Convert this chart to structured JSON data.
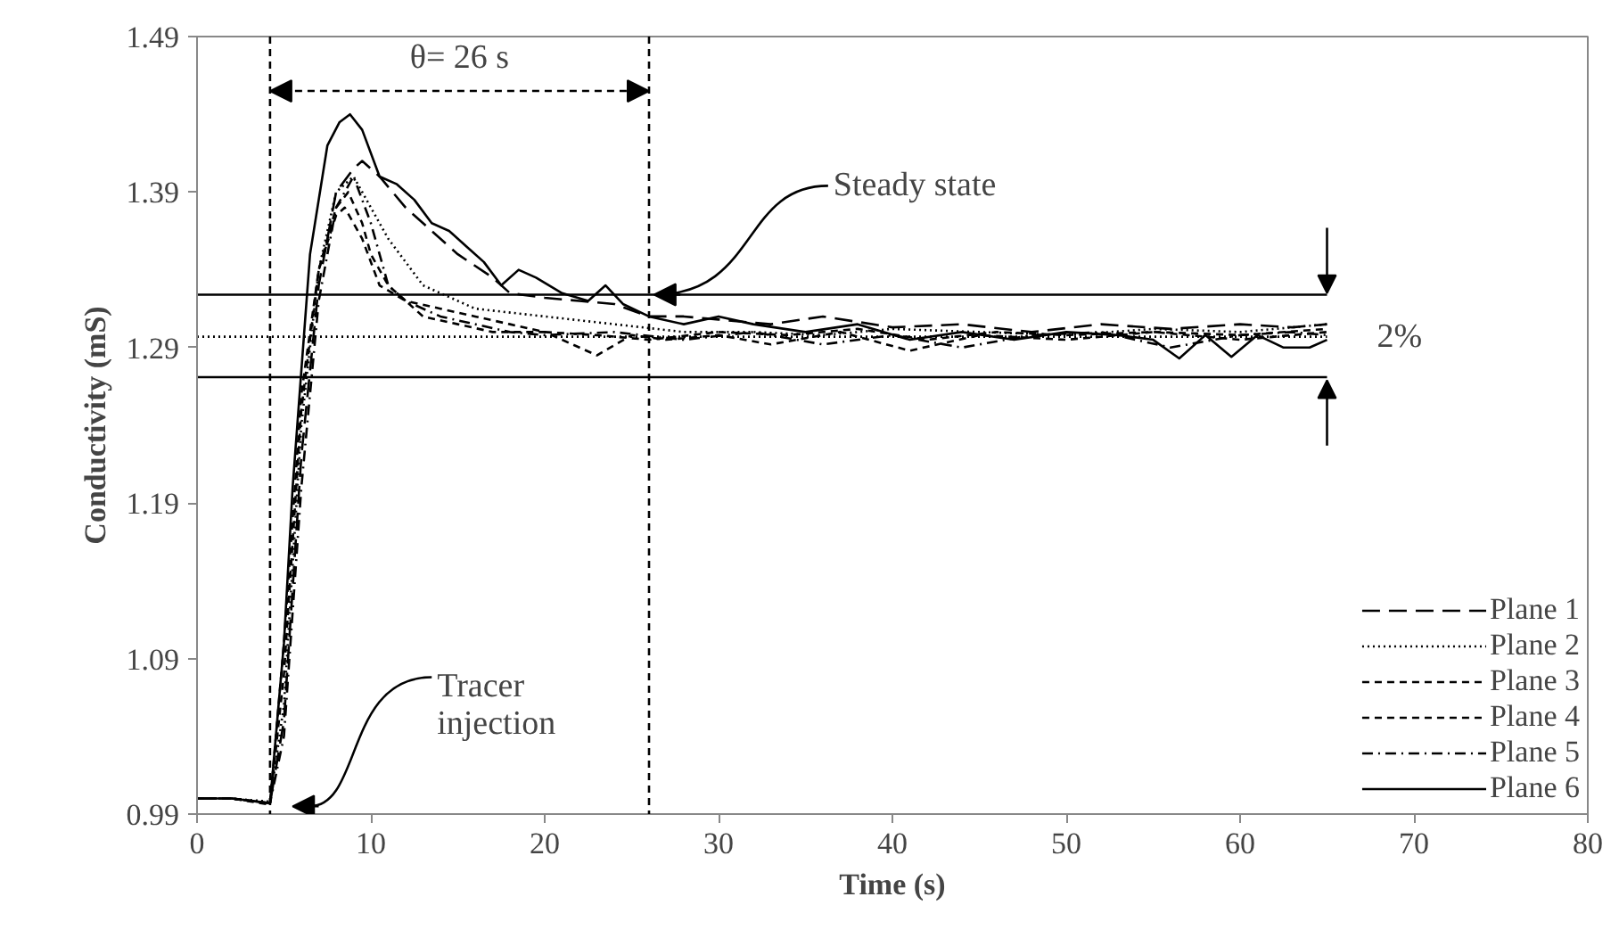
{
  "chart_data": {
    "type": "line",
    "xlabel": "Time (s)",
    "ylabel": "Conductivity (mS)",
    "xlim": [
      0,
      80
    ],
    "xticks": [
      0,
      10,
      20,
      30,
      40,
      50,
      60,
      70,
      80
    ],
    "ylim": [
      0.99,
      1.49
    ],
    "yticks": [
      0.99,
      1.09,
      1.19,
      1.29,
      1.39,
      1.49
    ],
    "grid": false,
    "legend": "bottom right",
    "series": [
      {
        "name": "Plane 1",
        "color": "#000000",
        "line_style": "longdashed",
        "x": [
          0,
          2,
          4.2,
          5,
          6,
          7,
          8,
          9,
          9.5,
          10.5,
          12,
          13,
          15,
          17,
          18,
          20,
          22,
          24,
          26,
          28,
          30,
          33,
          36,
          40,
          44,
          48,
          52,
          56,
          60,
          63,
          65
        ],
        "values": [
          1.0,
          1.0,
          0.997,
          1.05,
          1.22,
          1.33,
          1.39,
          1.405,
          1.41,
          1.4,
          1.38,
          1.37,
          1.35,
          1.335,
          1.325,
          1.322,
          1.32,
          1.318,
          1.31,
          1.31,
          1.308,
          1.305,
          1.31,
          1.303,
          1.305,
          1.3,
          1.305,
          1.302,
          1.305,
          1.303,
          1.305
        ]
      },
      {
        "name": "Plane 2",
        "color": "#000000",
        "line_style": "dotted",
        "x": [
          0,
          2,
          4.2,
          5,
          6,
          7,
          8,
          9,
          10,
          11,
          13,
          16,
          20,
          24,
          28,
          32,
          36,
          40,
          45,
          50,
          55,
          60,
          65
        ],
        "values": [
          1.0,
          1.0,
          0.998,
          1.06,
          1.24,
          1.34,
          1.39,
          1.4,
          1.38,
          1.36,
          1.33,
          1.315,
          1.31,
          1.305,
          1.3,
          1.3,
          1.298,
          1.302,
          1.3,
          1.298,
          1.302,
          1.3,
          1.305
        ]
      },
      {
        "name": "Plane 3",
        "color": "#000000",
        "line_style": "dashed",
        "x": [
          0,
          2,
          4.2,
          5,
          6,
          7,
          8,
          8.7,
          9.5,
          10,
          11,
          12,
          14,
          16,
          18,
          20,
          23,
          26,
          30,
          34,
          38,
          42,
          46,
          50,
          55,
          60,
          65
        ],
        "values": [
          1.0,
          1.0,
          0.997,
          1.08,
          1.25,
          1.34,
          1.38,
          1.39,
          1.37,
          1.35,
          1.33,
          1.32,
          1.315,
          1.31,
          1.305,
          1.3,
          1.298,
          1.295,
          1.3,
          1.298,
          1.302,
          1.295,
          1.3,
          1.298,
          1.3,
          1.298,
          1.302
        ]
      },
      {
        "name": "Plane 4",
        "color": "#000000",
        "line_style": "dashed",
        "x": [
          0,
          2,
          4.2,
          5,
          6,
          7,
          8,
          8.5,
          9.5,
          10.5,
          12,
          13,
          15,
          17,
          20,
          23,
          25,
          27,
          30,
          33,
          37,
          41,
          45,
          50,
          55,
          60,
          65
        ],
        "values": [
          1.0,
          1.0,
          0.996,
          1.1,
          1.26,
          1.34,
          1.375,
          1.38,
          1.36,
          1.33,
          1.32,
          1.31,
          1.305,
          1.3,
          1.3,
          1.285,
          1.298,
          1.295,
          1.298,
          1.292,
          1.3,
          1.288,
          1.298,
          1.295,
          1.3,
          1.295,
          1.3
        ]
      },
      {
        "name": "Plane 5",
        "color": "#000000",
        "line_style": "dashdot",
        "x": [
          0,
          2,
          4.2,
          5,
          6,
          7,
          8,
          9,
          10,
          11,
          12,
          14,
          16,
          18,
          20,
          24,
          28,
          32,
          36,
          40,
          44,
          48,
          52,
          56,
          60,
          63,
          65
        ],
        "values": [
          1.0,
          1.0,
          0.997,
          1.04,
          1.2,
          1.32,
          1.38,
          1.4,
          1.37,
          1.33,
          1.32,
          1.31,
          1.305,
          1.3,
          1.298,
          1.3,
          1.295,
          1.3,
          1.292,
          1.298,
          1.29,
          1.298,
          1.3,
          1.29,
          1.298,
          1.3,
          1.298
        ]
      },
      {
        "name": "Plane 6",
        "color": "#000000",
        "line_style": "solid",
        "x": [
          0,
          2,
          4.2,
          5,
          5.5,
          6.5,
          7.5,
          8.2,
          8.8,
          9.5,
          10.5,
          11.5,
          12.5,
          13.5,
          14.5,
          15.5,
          16.5,
          17.5,
          18.5,
          19.5,
          21,
          22.5,
          23.5,
          24.5,
          26,
          28,
          30,
          32,
          35,
          38,
          41,
          44,
          47,
          50,
          53,
          55,
          56.5,
          58,
          59.5,
          61,
          62.5,
          64,
          65
        ],
        "values": [
          1.0,
          1.0,
          0.997,
          1.1,
          1.2,
          1.35,
          1.42,
          1.435,
          1.44,
          1.43,
          1.4,
          1.395,
          1.385,
          1.37,
          1.365,
          1.355,
          1.345,
          1.33,
          1.34,
          1.335,
          1.325,
          1.32,
          1.33,
          1.318,
          1.31,
          1.305,
          1.31,
          1.305,
          1.3,
          1.305,
          1.295,
          1.3,
          1.295,
          1.3,
          1.298,
          1.295,
          1.283,
          1.298,
          1.284,
          1.298,
          1.29,
          1.29,
          1.295
        ]
      },
      {
        "color": "#000000",
        "line_style": "solid",
        "x": [
          0,
          65
        ],
        "values": [
          1.324,
          1.324
        ]
      },
      {
        "color": "#000000",
        "line_style": "dotted",
        "x": [
          0,
          65
        ],
        "values": [
          1.297,
          1.297
        ]
      },
      {
        "color": "#000000",
        "line_style": "solid",
        "x": [
          0,
          65
        ],
        "values": [
          1.271,
          1.271
        ]
      }
    ],
    "ref_lines": [
      {
        "axis": "x",
        "value": 4.2,
        "line_style": "dashed",
        "color": "#000000"
      },
      {
        "axis": "x",
        "value": 26,
        "line_style": "dashed",
        "color": "#000000"
      }
    ],
    "annotations": [
      "θ= 26 s",
      {
        "text": "Steady state",
        "x": 26.3,
        "y": 1.324
      },
      "Tracer injection",
      "2%"
    ]
  }
}
